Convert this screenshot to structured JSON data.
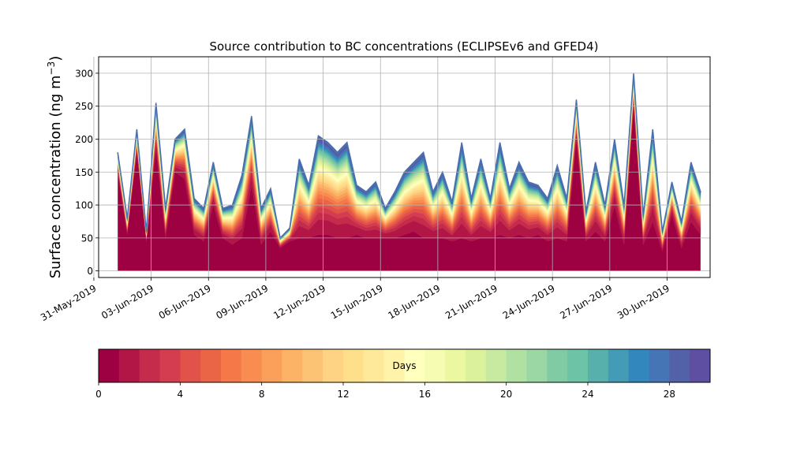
{
  "chart_data": {
    "type": "area",
    "title": "Source contribution to BC concentrations (ECLIPSEv6 and GFED4)",
    "ylabel": "Surface concentration (ng m",
    "ylabel_exponent": "−3",
    "ylabel_close": ")",
    "xlabel": "",
    "ylim": [
      -10,
      325
    ],
    "xlim": [
      "2019-05-31T06:00",
      "2019-07-02T06:00"
    ],
    "y_ticks": [
      0,
      50,
      100,
      150,
      200,
      250,
      300
    ],
    "x_ticks": [
      "31-May-2019",
      "03-Jun-2019",
      "06-Jun-2019",
      "09-Jun-2019",
      "12-Jun-2019",
      "15-Jun-2019",
      "18-Jun-2019",
      "21-Jun-2019",
      "24-Jun-2019",
      "27-Jun-2019",
      "30-Jun-2019"
    ],
    "grid": true,
    "legend": {
      "type": "colorbar",
      "placement": "bottom",
      "label": "Days",
      "range": [
        0,
        30
      ],
      "ticks": [
        0,
        4,
        8,
        12,
        16,
        20,
        24,
        28
      ]
    },
    "colormap": [
      "#9e0142",
      "#b21647",
      "#c52c4b",
      "#d43d4f",
      "#e0524a",
      "#e96546",
      "#f57849",
      "#f88c51",
      "#fba05b",
      "#fdb366",
      "#fdc374",
      "#fed383",
      "#fee08b",
      "#fee99a",
      "#fff2a9",
      "#ffffbe",
      "#f7fcb3",
      "#ebf7a1",
      "#dcf19c",
      "#c7e9a0",
      "#b1e0a3",
      "#9bd7a4",
      "#80cba4",
      "#6cc3a5",
      "#57b0ab",
      "#439bb5",
      "#3288bd",
      "#4675b5",
      "#5361a8",
      "#5e4fa2"
    ],
    "x": [
      "2019-06-01T06:00",
      "2019-06-01T18:00",
      "2019-06-02T06:00",
      "2019-06-02T18:00",
      "2019-06-03T06:00",
      "2019-06-03T18:00",
      "2019-06-04T06:00",
      "2019-06-04T18:00",
      "2019-06-05T06:00",
      "2019-06-05T18:00",
      "2019-06-06T06:00",
      "2019-06-06T18:00",
      "2019-06-07T06:00",
      "2019-06-07T18:00",
      "2019-06-08T06:00",
      "2019-06-08T18:00",
      "2019-06-09T06:00",
      "2019-06-09T18:00",
      "2019-06-10T06:00",
      "2019-06-10T18:00",
      "2019-06-11T06:00",
      "2019-06-11T18:00",
      "2019-06-12T06:00",
      "2019-06-12T18:00",
      "2019-06-13T06:00",
      "2019-06-13T18:00",
      "2019-06-14T06:00",
      "2019-06-14T18:00",
      "2019-06-15T06:00",
      "2019-06-15T18:00",
      "2019-06-16T06:00",
      "2019-06-16T18:00",
      "2019-06-17T06:00",
      "2019-06-17T18:00",
      "2019-06-18T06:00",
      "2019-06-18T18:00",
      "2019-06-19T06:00",
      "2019-06-19T18:00",
      "2019-06-20T06:00",
      "2019-06-20T18:00",
      "2019-06-21T06:00",
      "2019-06-21T18:00",
      "2019-06-22T06:00",
      "2019-06-22T18:00",
      "2019-06-23T06:00",
      "2019-06-23T18:00",
      "2019-06-24T06:00",
      "2019-06-24T18:00",
      "2019-06-25T06:00",
      "2019-06-25T18:00",
      "2019-06-26T06:00",
      "2019-06-26T18:00",
      "2019-06-27T06:00",
      "2019-06-27T18:00",
      "2019-06-28T06:00",
      "2019-06-28T18:00",
      "2019-06-29T06:00",
      "2019-06-29T18:00",
      "2019-06-30T06:00",
      "2019-06-30T18:00",
      "2019-07-01T06:00",
      "2019-07-01T18:00"
    ],
    "total": [
      180,
      80,
      215,
      60,
      255,
      95,
      200,
      215,
      110,
      95,
      165,
      95,
      100,
      145,
      235,
      95,
      125,
      50,
      65,
      170,
      130,
      205,
      195,
      180,
      195,
      130,
      120,
      135,
      95,
      120,
      150,
      165,
      180,
      120,
      150,
      105,
      195,
      110,
      170,
      110,
      195,
      125,
      165,
      135,
      130,
      110,
      160,
      110,
      260,
      90,
      165,
      100,
      200,
      100,
      300,
      85,
      215,
      60,
      135,
      75,
      165,
      120
    ],
    "base_day0": [
      150,
      55,
      180,
      45,
      185,
      50,
      150,
      140,
      55,
      45,
      100,
      50,
      40,
      50,
      130,
      40,
      60,
      35,
      45,
      50,
      50,
      55,
      55,
      50,
      50,
      55,
      50,
      50,
      50,
      50,
      55,
      60,
      50,
      50,
      50,
      45,
      50,
      45,
      50,
      50,
      55,
      50,
      55,
      50,
      55,
      45,
      50,
      45,
      200,
      45,
      60,
      45,
      100,
      40,
      250,
      40,
      75,
      30,
      85,
      35,
      75,
      55
    ]
  }
}
